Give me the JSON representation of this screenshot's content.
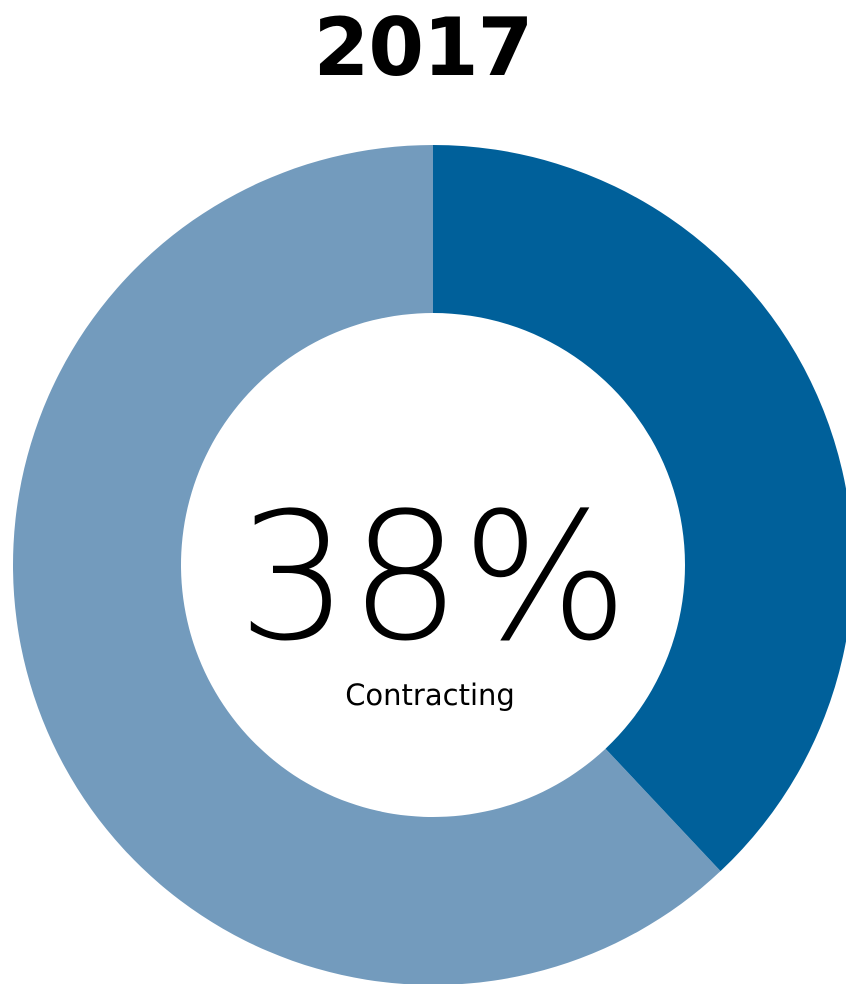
{
  "chart_data": {
    "type": "pie",
    "title": "2017",
    "categories": [
      "Contracting",
      ""
    ],
    "values": [
      38,
      62
    ],
    "colors": [
      "#00609a",
      "#739bbd"
    ],
    "center_value": "38%",
    "center_label": "Contracting"
  }
}
